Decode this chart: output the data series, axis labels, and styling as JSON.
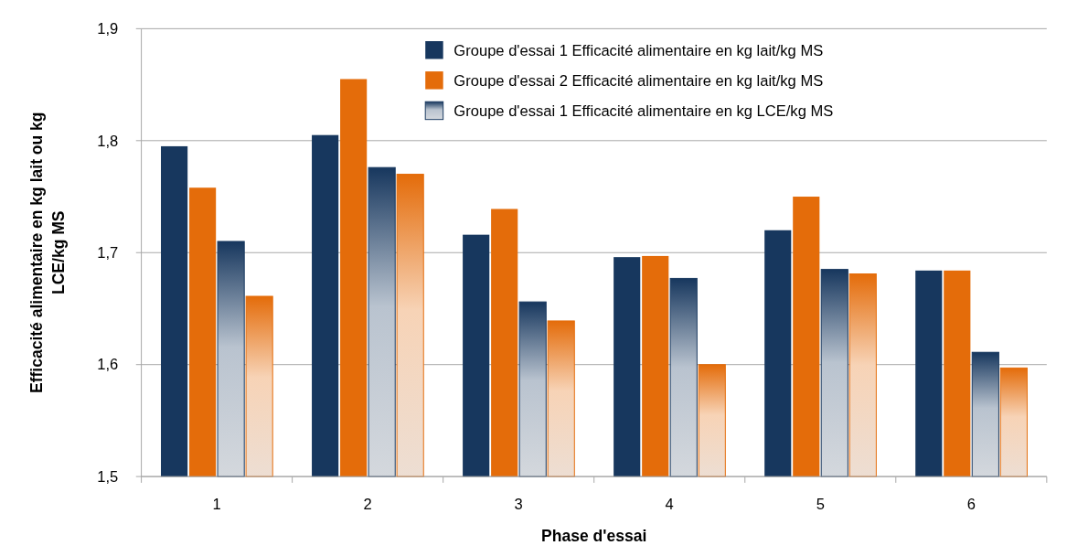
{
  "chart_data": {
    "type": "bar",
    "xlabel": "Phase d'essai",
    "ylabel": "Efficacité alimentaire en kg lait ou kg LCE/kg MS",
    "categories": [
      "1",
      "2",
      "3",
      "4",
      "5",
      "6"
    ],
    "series": [
      {
        "name": "Groupe d'essai 1 Efficacité alimentaire en kg lait/kg MS",
        "color": "#17375e",
        "values": [
          1.795,
          1.805,
          1.716,
          1.696,
          1.72,
          1.684
        ]
      },
      {
        "name": "Groupe d'essai 2 Efficacité alimentaire en kg lait/kg MS",
        "color": "#e46c0a",
        "values": [
          1.758,
          1.855,
          1.739,
          1.697,
          1.75,
          1.684
        ]
      },
      {
        "name": "Groupe d'essai 1 Efficacité alimentaire en kg LCE/kg MS",
        "color": "#17375e",
        "values": [
          1.71,
          1.776,
          1.656,
          1.677,
          1.685,
          1.611
        ]
      },
      {
        "color": "#e46c0a",
        "values": [
          1.661,
          1.77,
          1.639,
          1.6,
          1.681,
          1.597
        ]
      }
    ],
    "ylim": [
      1.5,
      1.9
    ],
    "yticks": [
      {
        "value": 1.5,
        "label": "1,5"
      },
      {
        "value": 1.6,
        "label": "1,6"
      },
      {
        "value": 1.7,
        "label": "1,7"
      },
      {
        "value": 1.8,
        "label": "1,8"
      },
      {
        "value": 1.9,
        "label": "1,9"
      }
    ],
    "grid": "y",
    "legend": "top right"
  }
}
